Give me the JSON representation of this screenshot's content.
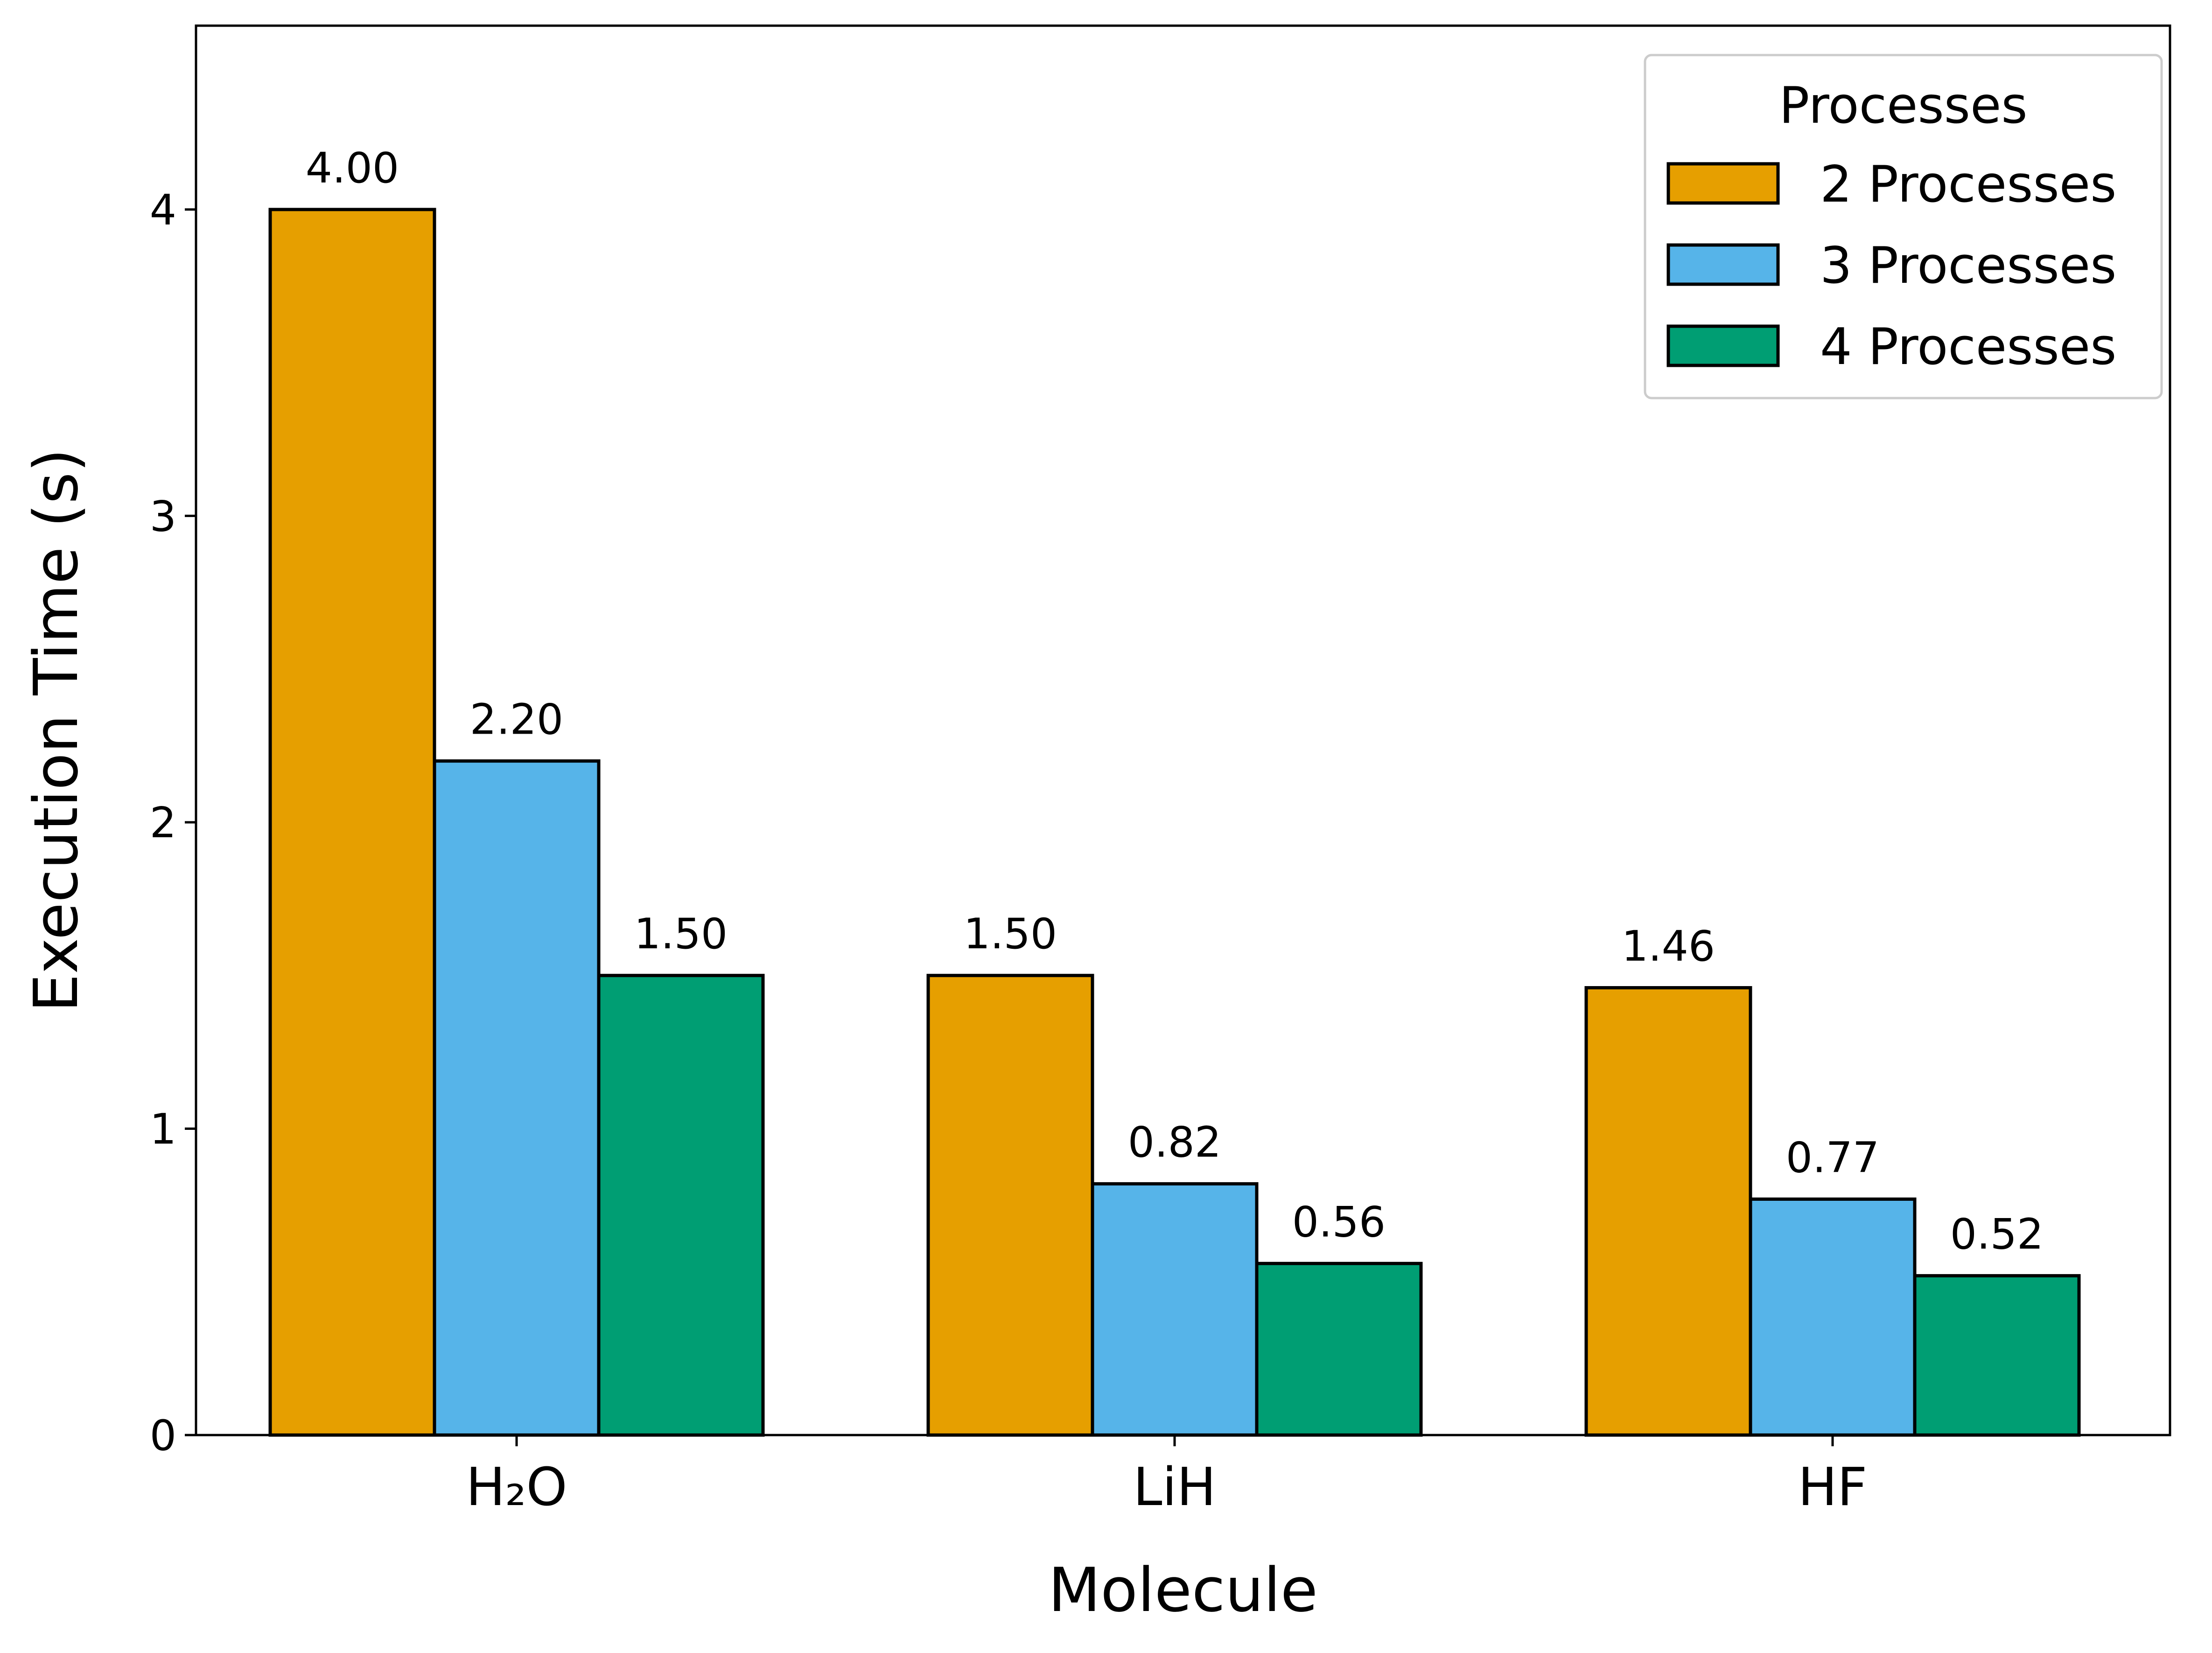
{
  "chart_data": {
    "type": "bar",
    "title": "",
    "xlabel": "Molecule",
    "ylabel": "Execution Time (s)",
    "ylim": [
      0,
      4.6
    ],
    "yticks": [
      0,
      1,
      2,
      3,
      4
    ],
    "ytick_labels": [
      "0",
      "1",
      "2",
      "3",
      "4"
    ],
    "categories": [
      "H₂O",
      "LiH",
      "HF"
    ],
    "series": [
      {
        "name": "2 Processes",
        "color": "#E69F00",
        "values": [
          4.0,
          1.5,
          1.46
        ],
        "labels": [
          "4.00",
          "1.50",
          "1.46"
        ]
      },
      {
        "name": "3 Processes",
        "color": "#56B4E9",
        "values": [
          2.2,
          0.82,
          0.77
        ],
        "labels": [
          "2.20",
          "0.82",
          "0.77"
        ]
      },
      {
        "name": "4 Processes",
        "color": "#009E73",
        "values": [
          1.5,
          0.56,
          0.52
        ],
        "labels": [
          "1.50",
          "0.56",
          "0.52"
        ]
      }
    ],
    "legend": {
      "title": "Processes",
      "position": "top-right"
    },
    "grid": false
  }
}
